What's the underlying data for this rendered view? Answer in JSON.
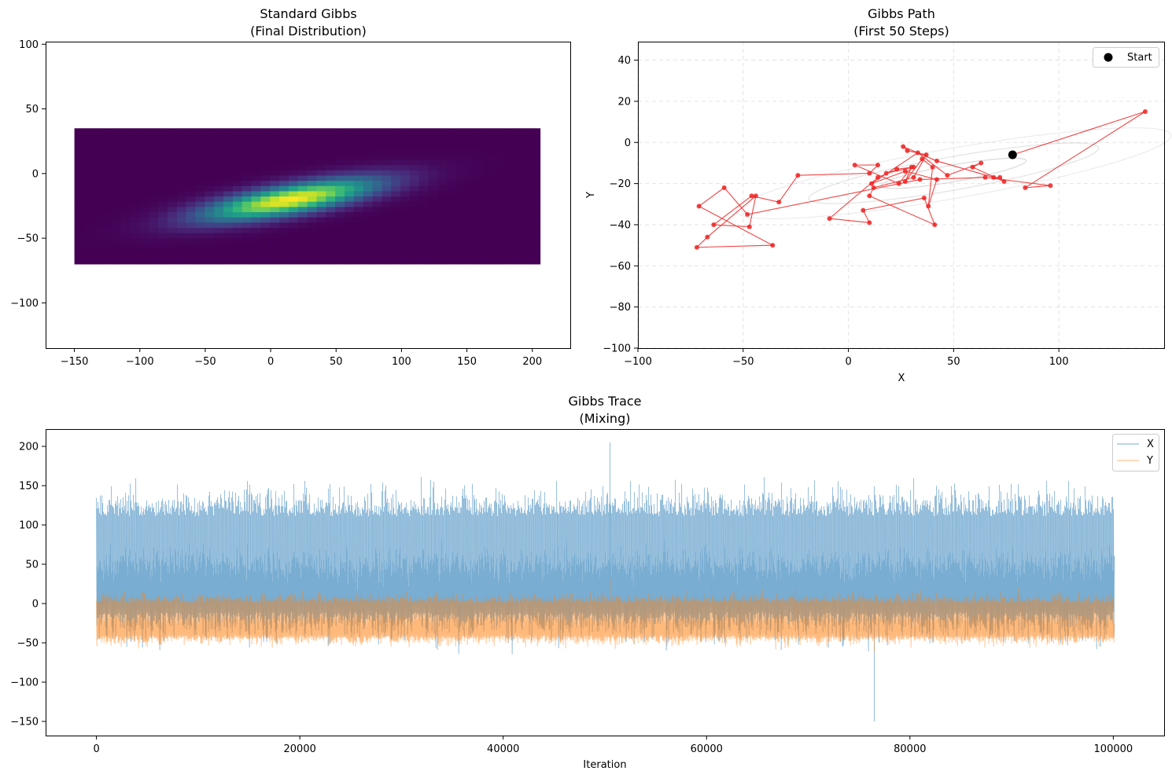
{
  "chart_data": [
    {
      "type": "heatmap",
      "title": "Standard Gibbs",
      "subtitle": "(Final Distribution)",
      "xlabel": "",
      "ylabel": "",
      "xlim": [
        -172,
        229
      ],
      "ylim": [
        -135,
        102
      ],
      "xticks": [
        -150,
        -100,
        -50,
        0,
        50,
        100,
        150,
        200
      ],
      "yticks": [
        100,
        50,
        0,
        -50,
        -100
      ],
      "xtick_labels": [
        "−150",
        "−100",
        "−50",
        "0",
        "50",
        "100",
        "150",
        "200"
      ],
      "ytick_labels": [
        "100",
        "50",
        "0",
        "−50",
        "−100"
      ],
      "extent": {
        "x": [
          -150,
          206
        ],
        "y": [
          -70,
          35
        ]
      },
      "bins": {
        "nx": 50,
        "ny": 26
      },
      "density": {
        "mean_x": 15,
        "mean_y": -20,
        "sd_x": 45,
        "sd_y": 11,
        "corr": 0.72
      },
      "colormap": "viridis"
    },
    {
      "type": "line",
      "title": "Gibbs Path",
      "subtitle": "(First 50 Steps)",
      "xlabel": "X",
      "ylabel": "Y",
      "xlim": [
        -100,
        150
      ],
      "ylim": [
        -100,
        49
      ],
      "xticks": [
        -100,
        -50,
        0,
        50,
        100
      ],
      "yticks": [
        40,
        20,
        0,
        -20,
        -40,
        -60,
        -80,
        -100
      ],
      "xtick_labels": [
        "−100",
        "−50",
        "0",
        "50",
        "100"
      ],
      "ytick_labels": [
        "40",
        "20",
        "0",
        "−20",
        "−40",
        "−60",
        "−80",
        "−100"
      ],
      "grid": true,
      "legend": {
        "position": "top-right",
        "label": "Start"
      },
      "start": [
        78,
        -6
      ],
      "path": [
        [
          78,
          -6
        ],
        [
          141,
          15
        ],
        [
          84,
          -22
        ],
        [
          96,
          -21
        ],
        [
          65,
          -17
        ],
        [
          34,
          -18
        ],
        [
          -48,
          -35
        ],
        [
          -59,
          -22
        ],
        [
          -71,
          -31
        ],
        [
          -36,
          -50
        ],
        [
          -72,
          -51
        ],
        [
          -67,
          -46
        ],
        [
          -44,
          -26
        ],
        [
          -47,
          -41
        ],
        [
          -64,
          -40
        ],
        [
          -46,
          -26
        ],
        [
          -33,
          -29
        ],
        [
          -24,
          -16
        ],
        [
          10,
          -15
        ],
        [
          14,
          -11
        ],
        [
          3,
          -11
        ],
        [
          24,
          -20
        ],
        [
          30,
          -12
        ],
        [
          27,
          -19
        ],
        [
          35,
          -8
        ],
        [
          40,
          -12
        ],
        [
          38,
          -31
        ],
        [
          42,
          -18
        ],
        [
          27,
          -14
        ],
        [
          11,
          -20
        ],
        [
          33,
          -5
        ],
        [
          47,
          -16
        ],
        [
          63,
          -10
        ],
        [
          59,
          -12
        ],
        [
          74,
          -19
        ],
        [
          72,
          -17
        ],
        [
          69,
          -17
        ],
        [
          42,
          -9
        ],
        [
          26,
          -2
        ],
        [
          28,
          -4
        ],
        [
          37,
          -6
        ],
        [
          31,
          -17
        ],
        [
          12,
          -22
        ],
        [
          10,
          -26
        ],
        [
          41,
          -40
        ],
        [
          36,
          -27
        ],
        [
          7,
          -33
        ],
        [
          10,
          -39
        ],
        [
          -9,
          -37
        ],
        [
          14,
          -17
        ],
        [
          23,
          -13
        ],
        [
          31,
          -12
        ],
        [
          18,
          -15
        ]
      ],
      "contours": {
        "mean_x": 50,
        "mean_y": -15,
        "sd_x": 35,
        "sd_y": 9,
        "corr": 0.7
      },
      "colors": {
        "path": "#ee2222",
        "start": "#000000",
        "contour": "#c8c8c8"
      }
    },
    {
      "type": "line",
      "title": "Gibbs Trace",
      "subtitle": "(Mixing)",
      "xlabel": "Iteration",
      "ylabel": "",
      "xlim": [
        -5000,
        105000
      ],
      "ylim": [
        -168,
        222
      ],
      "xticks": [
        0,
        20000,
        40000,
        60000,
        80000,
        100000
      ],
      "yticks": [
        200,
        150,
        100,
        50,
        0,
        -50,
        -100,
        -150
      ],
      "xtick_labels": [
        "0",
        "20000",
        "40000",
        "60000",
        "80000",
        "100000"
      ],
      "ytick_labels": [
        "200",
        "150",
        "100",
        "50",
        "0",
        "−50",
        "−100",
        "−150"
      ],
      "legend": {
        "position": "top-right"
      },
      "series": [
        {
          "name": "X",
          "n": 100000,
          "mean": 50,
          "sd": 35,
          "max": 205,
          "min": -150,
          "color": "#1f77b4"
        },
        {
          "name": "Y",
          "n": 100000,
          "mean": -20,
          "sd": 12,
          "max": 32,
          "min": -62,
          "color": "#ff7f0e"
        }
      ]
    }
  ]
}
